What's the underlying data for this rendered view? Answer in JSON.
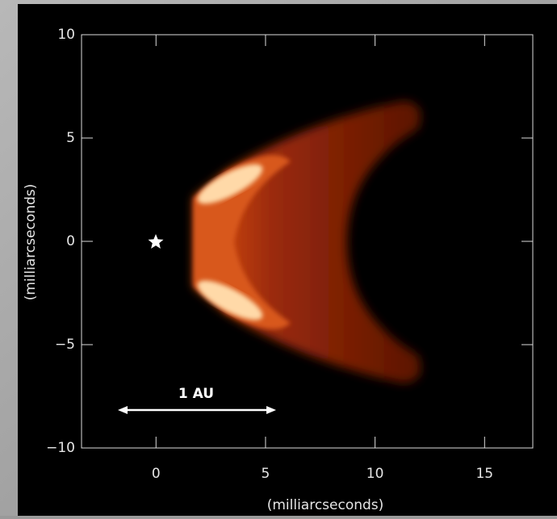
{
  "chart_data": {
    "type": "image",
    "x_label": "(milliarcseconds)",
    "y_label": "(milliarcseconds)",
    "annotation": "1 AU",
    "xlim": [
      -3.4,
      17.2
    ],
    "ylim": [
      -10,
      10
    ],
    "xticks": [
      0,
      5,
      10,
      15
    ],
    "yticks": [
      {
        "value": -10,
        "label": "−10"
      },
      {
        "value": -5,
        "label": "−5"
      },
      0,
      5,
      10
    ]
  }
}
